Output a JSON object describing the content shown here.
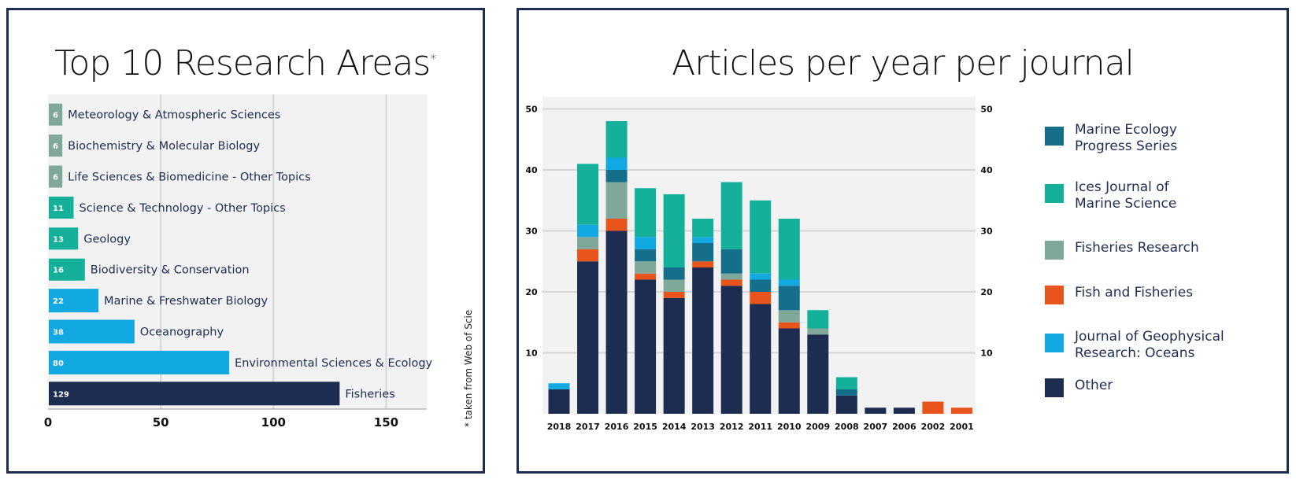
{
  "left_panel": {
    "title": "Top 10 Research Areas",
    "title_mark": "*",
    "note": "* taken from Web of Science"
  },
  "right_panel": {
    "title": "Articles per year per journal"
  },
  "chart_data": [
    {
      "type": "bar",
      "orientation": "horizontal",
      "title": "Top 10 Research Areas",
      "categories": [
        "Meteorology & Atmospheric Sciences",
        "Biochemistry & Molecular Biology",
        "Life Sciences & Biomedicine - Other Topics",
        "Science & Technology - Other Topics",
        "Geology",
        "Biodiversity & Conservation",
        "Marine & Freshwater Biology",
        "Oceanography",
        "Environmental Sciences & Ecology",
        "Fisheries"
      ],
      "values": [
        6,
        6,
        6,
        11,
        13,
        16,
        22,
        38,
        80,
        129
      ],
      "value_labels": [
        "6",
        "6",
        "6",
        "11",
        "13",
        "16",
        "22",
        "38",
        "80",
        "129"
      ],
      "bar_colors": [
        "#7fa89a",
        "#7fa89a",
        "#7fa89a",
        "#14b09a",
        "#14b09a",
        "#14b09a",
        "#12a9e3",
        "#12a9e3",
        "#12a9e3",
        "#1d2d52"
      ],
      "xlim": [
        0,
        168
      ],
      "xticks": [
        0,
        50,
        100,
        150
      ],
      "xtick_labels": [
        "0",
        "50",
        "100",
        "150"
      ],
      "grid": true,
      "background": "#f2f2f2"
    },
    {
      "type": "bar",
      "stacked": true,
      "title": "Articles per year per journal",
      "categories": [
        "2018",
        "2017",
        "2016",
        "2015",
        "2014",
        "2013",
        "2012",
        "2011",
        "2010",
        "2009",
        "2008",
        "2007",
        "2006",
        "2002",
        "2001"
      ],
      "ylim": [
        0,
        52
      ],
      "yticks": [
        10,
        20,
        30,
        40,
        50
      ],
      "ytick_labels": [
        "10",
        "20",
        "30",
        "40",
        "50"
      ],
      "grid": true,
      "background": "#f2f2f2",
      "legend_position": "right",
      "series": [
        {
          "name": "Other",
          "color": "#1d2d52",
          "values": [
            4,
            25,
            30,
            22,
            19,
            24,
            21,
            18,
            14,
            13,
            3,
            1,
            1,
            0,
            0
          ]
        },
        {
          "name": "Fish and Fisheries",
          "color": "#e8541c",
          "values": [
            0,
            2,
            2,
            1,
            1,
            1,
            1,
            2,
            1,
            0,
            0,
            0,
            0,
            2,
            1
          ]
        },
        {
          "name": "Fisheries Research",
          "color": "#7fa89a",
          "values": [
            0,
            2,
            6,
            2,
            2,
            0,
            1,
            0,
            2,
            1,
            0,
            0,
            0,
            0,
            0
          ]
        },
        {
          "name": "Marine Ecology Progress Series",
          "color": "#156f8a",
          "values": [
            0,
            0,
            2,
            2,
            2,
            3,
            4,
            2,
            4,
            0,
            1,
            0,
            0,
            0,
            0
          ]
        },
        {
          "name": "Journal of Geophysical Research: Oceans",
          "color": "#12a9e3",
          "values": [
            1,
            2,
            2,
            2,
            0,
            1,
            0,
            1,
            1,
            0,
            0,
            0,
            0,
            0,
            0
          ]
        },
        {
          "name": "Ices Journal of Marine Science",
          "color": "#14b09a",
          "values": [
            0,
            10,
            6,
            8,
            12,
            3,
            11,
            12,
            10,
            3,
            2,
            0,
            0,
            0,
            0
          ]
        }
      ],
      "legend": [
        {
          "label_lines": [
            "Marine Ecology",
            "Progress Series"
          ],
          "color": "#156f8a"
        },
        {
          "label_lines": [
            "Ices Journal of",
            "Marine Science"
          ],
          "color": "#14b09a"
        },
        {
          "label_lines": [
            "Fisheries Research"
          ],
          "color": "#7fa89a"
        },
        {
          "label_lines": [
            "Fish and Fisheries"
          ],
          "color": "#e8541c"
        },
        {
          "label_lines": [
            "Journal of Geophysical",
            "Research: Oceans"
          ],
          "color": "#12a9e3"
        },
        {
          "label_lines": [
            "Other"
          ],
          "color": "#1d2d52"
        }
      ]
    }
  ]
}
